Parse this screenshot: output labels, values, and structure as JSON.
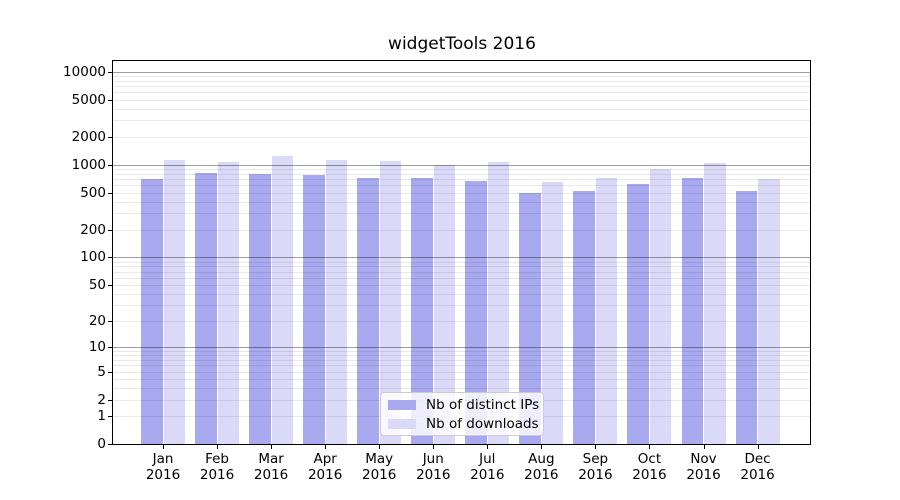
{
  "chart_data": {
    "type": "bar",
    "title": "widgetTools 2016",
    "categories": [
      "Jan",
      "Feb",
      "Mar",
      "Apr",
      "May",
      "Jun",
      "Jul",
      "Aug",
      "Sep",
      "Oct",
      "Nov",
      "Dec"
    ],
    "x_year": "2016",
    "series": [
      {
        "name": "Nb of distinct IPs",
        "color": "#a9a9f0",
        "values": [
          700,
          815,
          795,
          775,
          725,
          710,
          670,
          495,
          525,
          625,
          710,
          515
        ]
      },
      {
        "name": "Nb of downloads",
        "color": "#dadaf8",
        "values": [
          1130,
          1075,
          1250,
          1130,
          1105,
          985,
          1060,
          655,
          725,
          900,
          1035,
          695
        ]
      }
    ],
    "y_scale": "log10(value+1)",
    "y_ticks": [
      10000,
      5000,
      2000,
      1000,
      500,
      200,
      100,
      50,
      20,
      10,
      5,
      2,
      1,
      0
    ],
    "ylim": [
      0,
      10000
    ],
    "grid": "horizontal log minor+major, drawn over bars",
    "legend_position": "bottom-center-inside",
    "colors": {
      "grid_minor": "#e9e9e9",
      "grid_major": "#9e9e9e",
      "axis": "#000000",
      "background": "#ffffff"
    }
  }
}
